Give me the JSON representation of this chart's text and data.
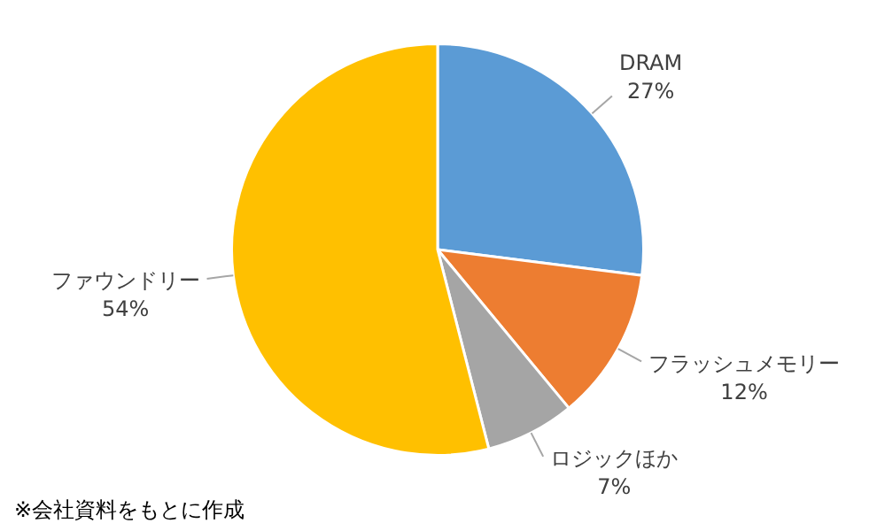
{
  "chart_data": {
    "type": "pie",
    "categories": [
      "DRAM",
      "フラッシュメモリー",
      "ロジックほか",
      "ファウンドリー"
    ],
    "values": [
      27,
      12,
      7,
      54
    ],
    "value_labels": [
      "27%",
      "12%",
      "7%",
      "54%"
    ],
    "colors": [
      "#5b9bd5",
      "#ed7d31",
      "#a5a5a5",
      "#ffc000"
    ],
    "legend": false,
    "annotations": [
      "※会社資料をもとに作成"
    ]
  }
}
